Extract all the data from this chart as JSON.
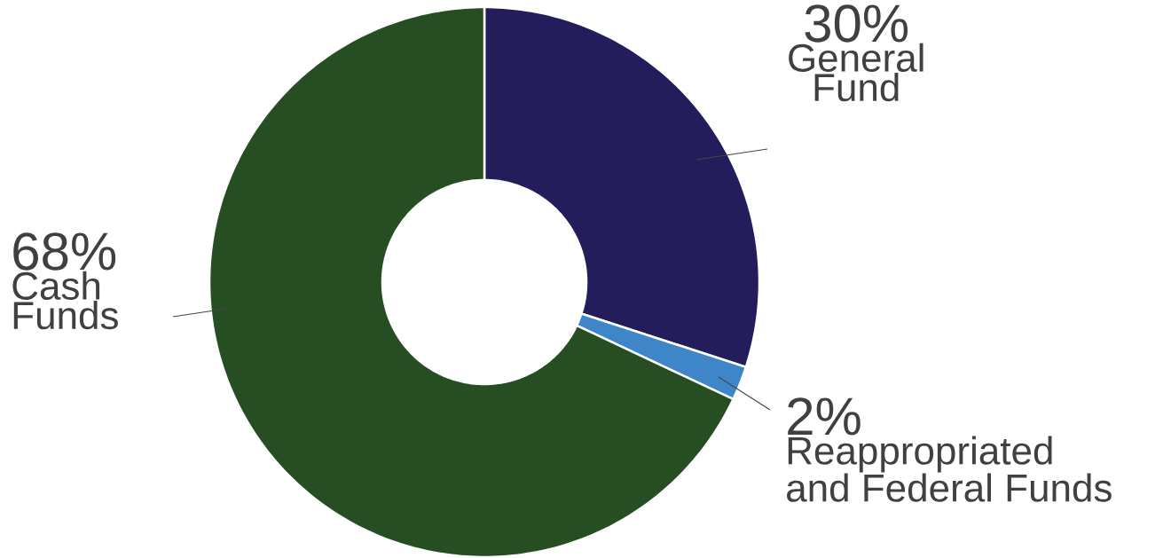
{
  "chart_data": {
    "type": "donut",
    "categories": [
      "General Fund",
      "Reappropriated and Federal Funds",
      "Cash Funds"
    ],
    "values": [
      30,
      2,
      68
    ],
    "colors": [
      "#231d5c",
      "#3f86c8",
      "#274d23"
    ],
    "value_labels": [
      "30%",
      "2%",
      "68%"
    ]
  }
}
